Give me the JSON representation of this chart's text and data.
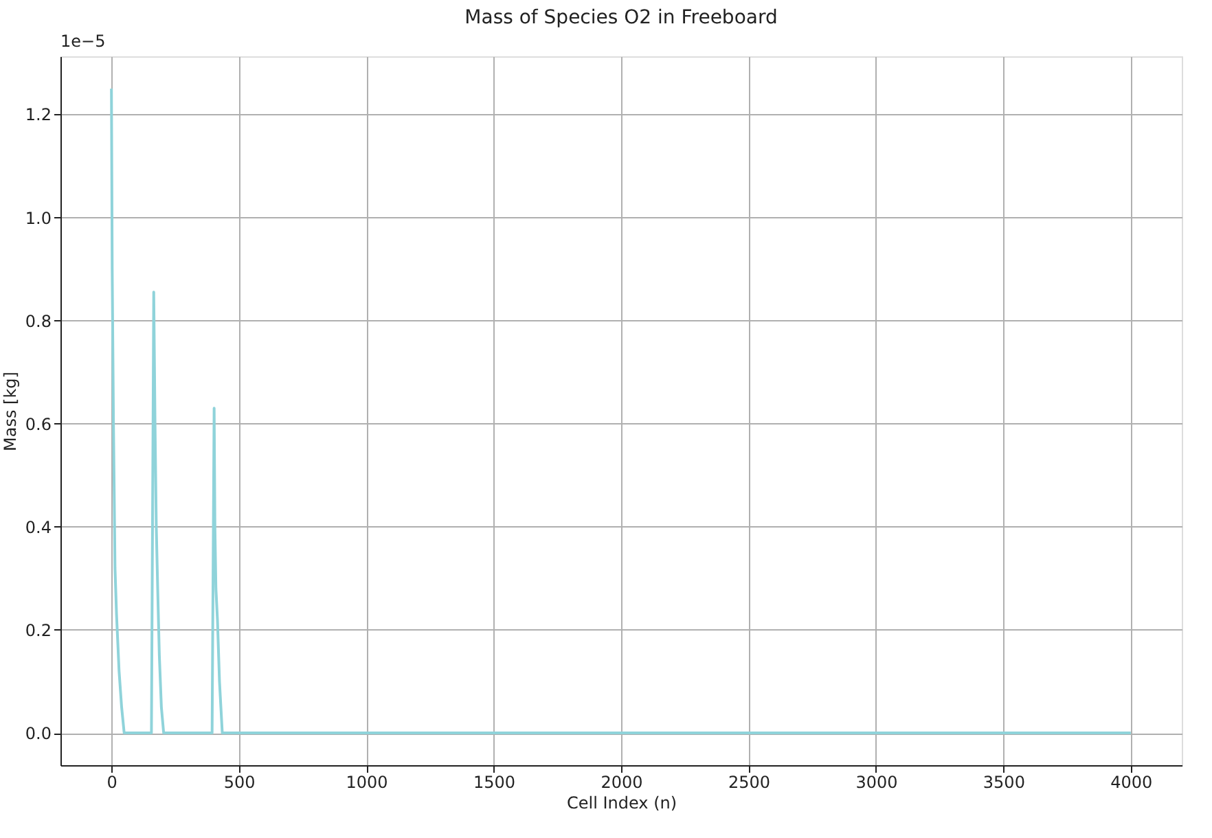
{
  "chart_data": {
    "type": "line",
    "title": "Mass of Species O2 in Freeboard",
    "xlabel": "Cell Index (n)",
    "ylabel": "Mass [kg]",
    "annotations": [
      "1e−5"
    ],
    "series": [
      {
        "color": "#8fd3da",
        "x": [
          0,
          3,
          8,
          14,
          20,
          30,
          40,
          50,
          157,
          166,
          171,
          176,
          182,
          188,
          196,
          205,
          395,
          403,
          406,
          410,
          416,
          424,
          435,
          4000
        ],
        "values": [
          1.25,
          0.9,
          0.6,
          0.32,
          0.23,
          0.12,
          0.05,
          0.0,
          0.0,
          0.855,
          0.6,
          0.4,
          0.27,
          0.15,
          0.05,
          0.0,
          0.0,
          0.63,
          0.4,
          0.28,
          0.22,
          0.1,
          0.0,
          0.0
        ]
      }
    ],
    "xlim": [
      -200,
      4200
    ],
    "ylim": [
      -0.0625,
      1.3125
    ],
    "xticks": [
      0,
      500,
      1000,
      1500,
      2000,
      2500,
      3000,
      3500,
      4000
    ],
    "yticks": [
      {
        "value": 0,
        "label": "0.0"
      },
      {
        "value": 0.2,
        "label": "0.2"
      },
      {
        "value": 0.4,
        "label": "0.4"
      },
      {
        "value": 0.6,
        "label": "0.6"
      },
      {
        "value": 0.8,
        "label": "0.8"
      },
      {
        "value": 1.0,
        "label": "1.0"
      },
      {
        "value": 1.2,
        "label": "1.2"
      }
    ],
    "grid": true,
    "line_style": "solid",
    "marker": "none"
  }
}
